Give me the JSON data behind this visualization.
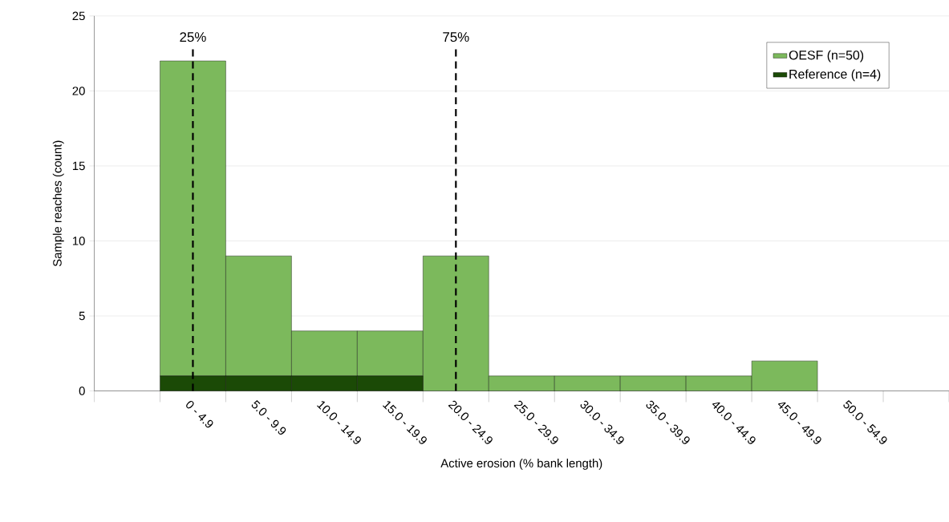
{
  "chart_data": {
    "type": "bar",
    "stacked": true,
    "xlabel": "Active erosion (% bank length)",
    "ylabel": "Sample reaches (count)",
    "categories": [
      null,
      "0 - 4.9",
      "5.0 - 9.9",
      "10.0 - 14.9",
      "15.0 - 19.9",
      "20.0 - 24.9",
      "25.0 - 29.9",
      "30.0 - 34.9",
      "35.0 - 39.9",
      "40.0 - 44.9",
      "45.0 - 49.9",
      "50.0 - 54.9",
      null
    ],
    "series": [
      {
        "name": "Reference (n=4)",
        "color": "#1b4a06",
        "values": [
          null,
          1,
          1,
          1,
          1,
          0,
          0,
          0,
          0,
          0,
          0,
          0,
          null
        ]
      },
      {
        "name": "OESF (n=50)",
        "color": "#7cb95c",
        "values": [
          null,
          21,
          8,
          3,
          3,
          9,
          1,
          1,
          1,
          1,
          2,
          0,
          null
        ]
      }
    ],
    "ylim": [
      0,
      25
    ],
    "yticks": [
      0,
      5,
      10,
      15,
      20,
      25
    ],
    "grid": "y",
    "legend": "top right",
    "ref_lines": [
      {
        "axis": "x",
        "value": "0 - 4.9",
        "label": "25%",
        "line_style": "dashed",
        "color": "#000000"
      },
      {
        "axis": "x",
        "value": "20.0 - 24.9",
        "label": "75%",
        "line_style": "dashed",
        "color": "#000000"
      }
    ]
  }
}
